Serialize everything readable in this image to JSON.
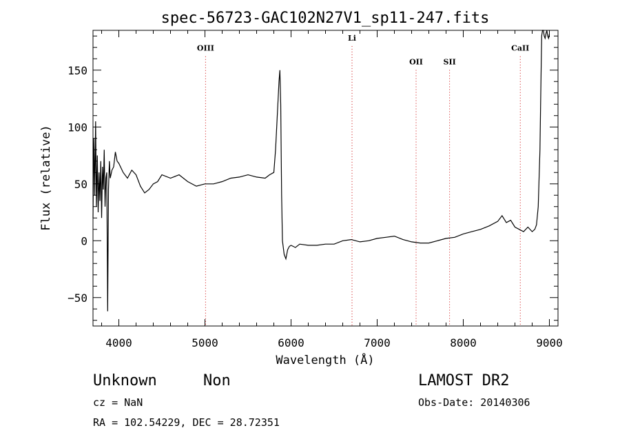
{
  "chart_data": {
    "type": "line",
    "title": "spec-56723-GAC102N27V1_sp11-247.fits",
    "xlabel": "Wavelength (Å)",
    "ylabel": "Flux (relative)",
    "xlim": [
      3700,
      9100
    ],
    "ylim": [
      -75,
      185
    ],
    "x_ticks": [
      4000,
      5000,
      6000,
      7000,
      8000,
      9000
    ],
    "y_ticks": [
      -50,
      0,
      50,
      100,
      150
    ],
    "grid": false,
    "line_color": "#000000",
    "marker_color": "#cc0000",
    "series": [
      {
        "x": [
          3700,
          3710,
          3720,
          3730,
          3740,
          3750,
          3760,
          3770,
          3780,
          3790,
          3800,
          3810,
          3820,
          3830,
          3840,
          3850,
          3860,
          3870,
          3880,
          3890,
          3900,
          3920,
          3940,
          3960,
          3980,
          4000,
          4050,
          4100,
          4150,
          4200,
          4250,
          4300,
          4350,
          4400,
          4450,
          4500,
          4600,
          4700,
          4800,
          4900,
          5000,
          5100,
          5200,
          5300,
          5400,
          5500,
          5600,
          5700,
          5750,
          5800,
          5820,
          5840,
          5860,
          5870,
          5880,
          5890,
          5900,
          5920,
          5940,
          5960,
          5980,
          6000,
          6050,
          6100,
          6200,
          6300,
          6400,
          6500,
          6600,
          6700,
          6800,
          6900,
          7000,
          7100,
          7200,
          7300,
          7400,
          7500,
          7600,
          7700,
          7800,
          7900,
          8000,
          8100,
          8200,
          8300,
          8400,
          8450,
          8500,
          8550,
          8600,
          8650,
          8700,
          8750,
          8800,
          8830,
          8850,
          8870,
          8890,
          8900,
          8910,
          8920,
          8930,
          8940,
          8950,
          8960,
          8970,
          8980,
          8990,
          9000
        ],
        "y": [
          20,
          90,
          40,
          105,
          30,
          75,
          25,
          60,
          35,
          70,
          20,
          65,
          45,
          80,
          30,
          55,
          60,
          -62,
          45,
          70,
          55,
          62,
          65,
          78,
          70,
          68,
          60,
          55,
          62,
          58,
          48,
          42,
          45,
          50,
          52,
          58,
          55,
          58,
          52,
          48,
          50,
          50,
          52,
          55,
          56,
          58,
          56,
          55,
          58,
          60,
          80,
          110,
          140,
          150,
          120,
          40,
          0,
          -12,
          -16,
          -8,
          -5,
          -4,
          -6,
          -3,
          -4,
          -4,
          -3,
          -3,
          0,
          1,
          -1,
          0,
          2,
          3,
          4,
          1,
          -1,
          -2,
          -2,
          0,
          2,
          3,
          6,
          8,
          10,
          13,
          17,
          22,
          16,
          18,
          12,
          10,
          8,
          12,
          8,
          10,
          14,
          30,
          80,
          130,
          180,
          190,
          185,
          180,
          178,
          182,
          185,
          180,
          178,
          182
        ]
      }
    ],
    "lines": [
      {
        "label": "OIII",
        "x": 5007,
        "label_y": 167
      },
      {
        "label": "Li",
        "x": 6708,
        "label_y": 176
      },
      {
        "label": "OII",
        "x": 7452,
        "label_y": 155
      },
      {
        "label": "SII",
        "x": 7841,
        "label_y": 155
      },
      {
        "label": "CaII",
        "x": 8662,
        "label_y": 167
      }
    ]
  },
  "info": {
    "class": "Unknown",
    "subclass": "Non",
    "cz": "cz = NaN",
    "coords": "RA = 102.54229, DEC =  28.72351",
    "survey": "LAMOST DR2",
    "obs_date": "Obs-Date: 20140306"
  }
}
